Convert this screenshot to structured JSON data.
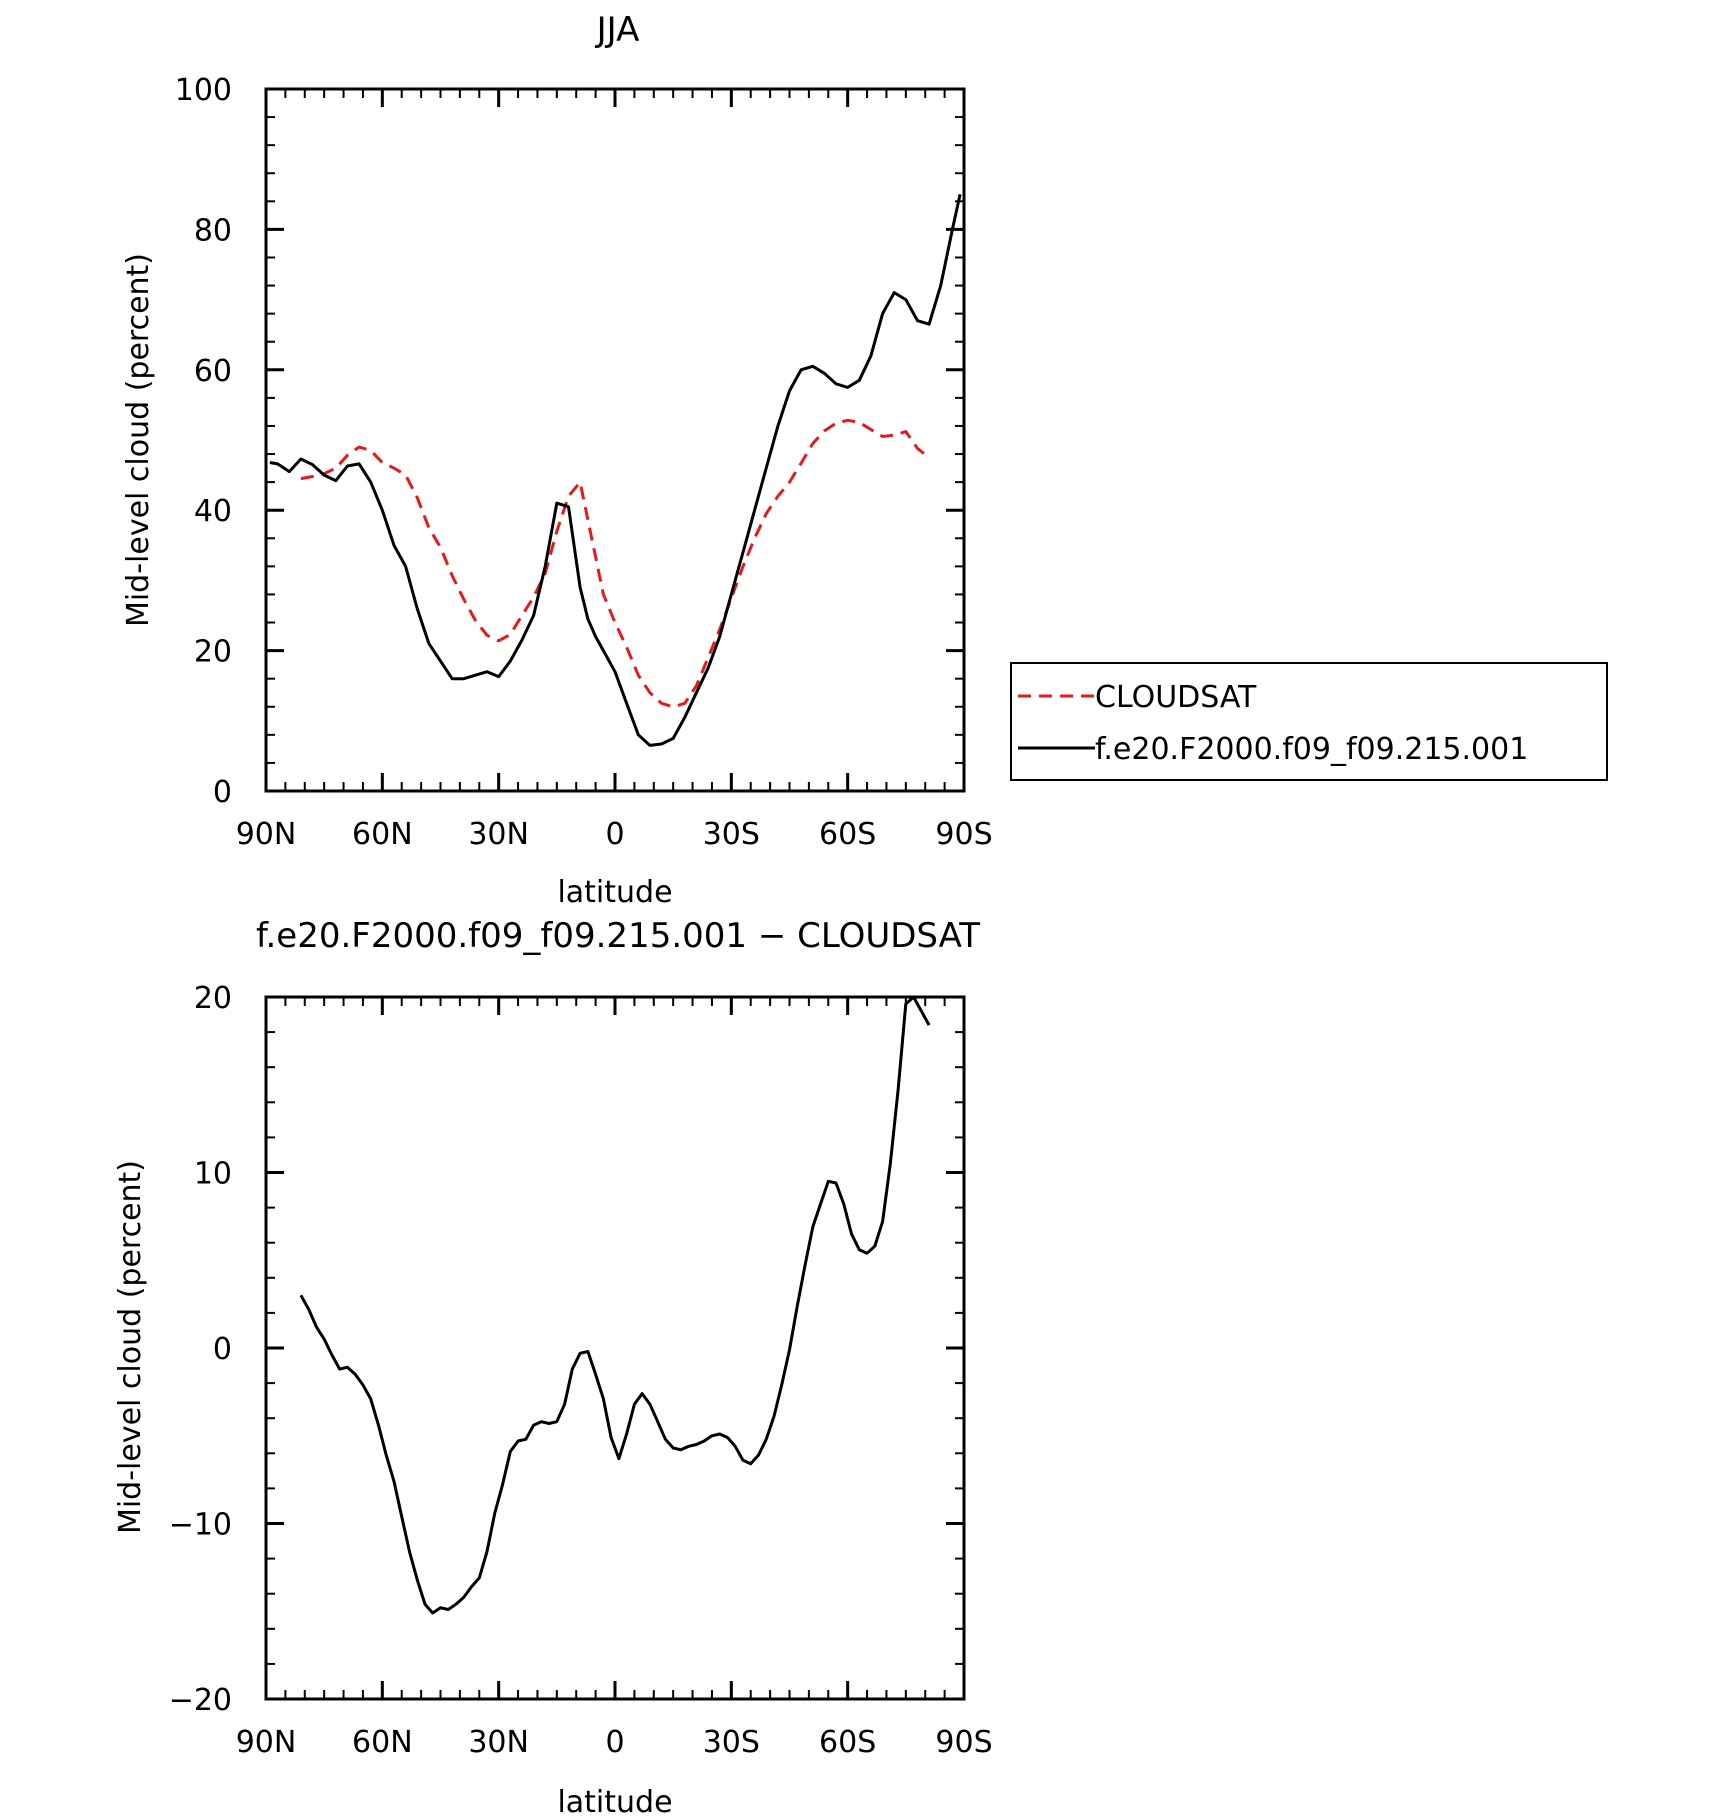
{
  "chart_data": [
    {
      "type": "line",
      "title": "JJA",
      "xlabel": "latitude",
      "ylabel": "Mid-level cloud (percent)",
      "xlim": [
        -90,
        90
      ],
      "ylim": [
        0,
        100
      ],
      "xtick_values": [
        -90,
        -60,
        -30,
        0,
        30,
        60,
        90
      ],
      "xtick_labels": [
        "90N",
        "60N",
        "30N",
        "0",
        "30S",
        "60S",
        "90S"
      ],
      "yticks": [
        0,
        20,
        40,
        60,
        80,
        100
      ],
      "grid": false,
      "legend": {
        "placement": "outside-right",
        "entries": [
          "CLOUDSAT",
          "f.e20.F2000.f09_f09.215.001"
        ]
      },
      "series": [
        {
          "name": "CLOUDSAT",
          "color": "#e41a1c",
          "dash": "dashed",
          "x": [
            -81,
            -78,
            -75,
            -72,
            -69,
            -66,
            -63,
            -60,
            -57,
            -54,
            -51,
            -48,
            -45,
            -42,
            -39,
            -36,
            -33,
            -30,
            -27,
            -24,
            -21,
            -18,
            -15,
            -12,
            -9,
            -6,
            -3,
            0,
            3,
            6,
            9,
            12,
            15,
            18,
            21,
            24,
            27,
            30,
            33,
            36,
            39,
            42,
            45,
            48,
            51,
            54,
            57,
            60,
            63,
            66,
            69,
            72,
            75,
            78,
            81
          ],
          "y": [
            44.5,
            44.8,
            45.2,
            46,
            47.8,
            49,
            48.5,
            46.8,
            46,
            45,
            41.8,
            37.5,
            34.7,
            30.7,
            27.3,
            24.3,
            22.2,
            21.4,
            22.3,
            25,
            27.6,
            31,
            37,
            42,
            44,
            36,
            28,
            24,
            20.5,
            16.5,
            14,
            12.5,
            12,
            12.5,
            15,
            19,
            23,
            27.5,
            32,
            36,
            39.5,
            42,
            44,
            46.7,
            49.5,
            51.3,
            52.4,
            52.8,
            52.5,
            51.5,
            50.5,
            50.7,
            51.2,
            48.8,
            47.5
          ]
        },
        {
          "name": "f.e20.F2000.f09_f09.215.001",
          "color": "#000000",
          "dash": "solid",
          "x": [
            -89,
            -87,
            -84,
            -81,
            -78,
            -75,
            -72,
            -69,
            -66,
            -63,
            -60,
            -57,
            -54,
            -51,
            -48,
            -45,
            -42,
            -39,
            -36,
            -33,
            -30,
            -27,
            -24,
            -21,
            -18,
            -15,
            -12,
            -9,
            -7,
            -5,
            -3,
            0,
            3,
            6,
            9,
            12,
            15,
            18,
            21,
            24,
            27,
            30,
            33,
            36,
            39,
            42,
            45,
            48,
            51,
            54,
            57,
            60,
            63,
            66,
            69,
            72,
            75,
            78,
            81,
            84,
            87,
            89
          ],
          "y": [
            46.8,
            46.6,
            45.5,
            47.3,
            46.5,
            45,
            44.2,
            46.3,
            46.6,
            44,
            40,
            35,
            32,
            26,
            21,
            18.5,
            16,
            16,
            16.5,
            17,
            16.3,
            18.5,
            21.5,
            25,
            32,
            41,
            40.5,
            29,
            24.5,
            22,
            20,
            17,
            12.5,
            8,
            6.5,
            6.7,
            7.5,
            10.5,
            14,
            17.5,
            22,
            28,
            34,
            40,
            46,
            52,
            57,
            60,
            60.5,
            59.5,
            58,
            57.5,
            58.5,
            62,
            68,
            71,
            70,
            67,
            66.5,
            72,
            80,
            85
          ]
        }
      ]
    },
    {
      "type": "line",
      "title": "f.e20.F2000.f09_f09.215.001 − CLOUDSAT",
      "xlabel": "latitude",
      "ylabel": "Mid-level cloud (percent)",
      "xlim": [
        -90,
        90
      ],
      "ylim": [
        -20,
        20
      ],
      "xtick_values": [
        -90,
        -60,
        -30,
        0,
        30,
        60,
        90
      ],
      "xtick_labels": [
        "90N",
        "60N",
        "30N",
        "0",
        "30S",
        "60S",
        "90S"
      ],
      "yticks": [
        -20,
        -10,
        0,
        10,
        20
      ],
      "ytick_labels": [
        "−20",
        "−10",
        "0",
        "10",
        "20"
      ],
      "grid": false,
      "series": [
        {
          "color": "#000000",
          "dash": "solid",
          "x": [
            -81,
            -79,
            -77,
            -75,
            -73,
            -71,
            -69,
            -67,
            -65,
            -63,
            -61,
            -59,
            -57,
            -55,
            -53,
            -51,
            -49,
            -47,
            -45,
            -43,
            -41,
            -39,
            -37,
            -35,
            -33,
            -31,
            -29,
            -27,
            -25,
            -23,
            -21,
            -19,
            -17,
            -15,
            -13,
            -11,
            -9,
            -7,
            -5,
            -3,
            -1,
            1,
            3,
            5,
            7,
            9,
            11,
            13,
            15,
            17,
            19,
            21,
            23,
            25,
            27,
            29,
            31,
            33,
            35,
            37,
            39,
            41,
            43,
            45,
            47,
            49,
            51,
            53,
            55,
            57,
            59,
            61,
            63,
            65,
            67,
            69,
            71,
            73,
            75,
            77,
            79,
            81
          ],
          "y": [
            3,
            2.2,
            1.2,
            0.5,
            -0.4,
            -1.2,
            -1.1,
            -1.5,
            -2.1,
            -2.9,
            -4.4,
            -6.1,
            -7.6,
            -9.6,
            -11.6,
            -13.2,
            -14.6,
            -15.1,
            -14.8,
            -14.9,
            -14.6,
            -14.2,
            -13.6,
            -13.1,
            -11.6,
            -9.4,
            -7.8,
            -5.9,
            -5.3,
            -5.2,
            -4.4,
            -4.2,
            -4.3,
            -4.2,
            -3.2,
            -1.2,
            -0.3,
            -0.2,
            -1.5,
            -2.9,
            -5.1,
            -6.3,
            -4.9,
            -3.2,
            -2.6,
            -3.2,
            -4.2,
            -5.2,
            -5.7,
            -5.8,
            -5.6,
            -5.5,
            -5.3,
            -5.0,
            -4.9,
            -5.1,
            -5.6,
            -6.4,
            -6.6,
            -6.1,
            -5.2,
            -3.9,
            -2.1,
            -0.1,
            2.4,
            4.7,
            6.9,
            8.2,
            9.5,
            9.4,
            8.2,
            6.5,
            5.6,
            5.4,
            5.8,
            7.2,
            10.5,
            14.7,
            19.6,
            20.0,
            19.2,
            18.4
          ]
        }
      ]
    }
  ]
}
